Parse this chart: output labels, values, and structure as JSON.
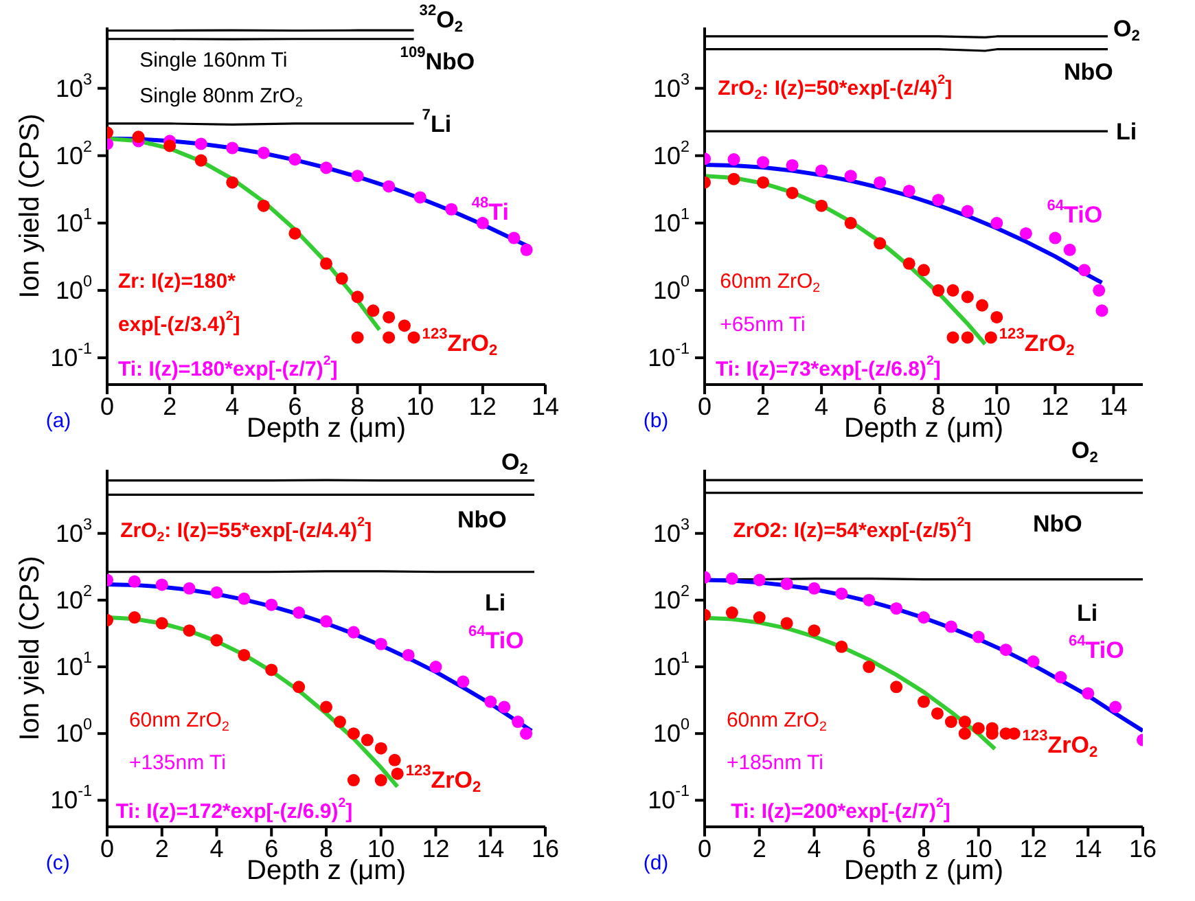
{
  "chart_data": [
    {
      "type": "scatter",
      "xlabel": "Depth z (μm)",
      "ylabel": "Ion yield (CPS)",
      "xlim": [
        0,
        14
      ],
      "xticks": [
        0,
        2,
        4,
        6,
        8,
        10,
        12,
        14
      ],
      "ylim": [
        0.04,
        8000
      ],
      "log": "y",
      "legend": false,
      "grid": false,
      "yticks": [
        {
          "value": 0.1,
          "label": "10$^{-1}$"
        },
        {
          "value": 1,
          "label": "10$^{0}$"
        },
        {
          "value": 10,
          "label": "10$^{1}$"
        },
        {
          "value": 100,
          "label": "10$^{2}$"
        },
        {
          "value": 1000,
          "label": "10$^{3}$"
        }
      ],
      "annotations": [
        "Single 160nm Ti",
        "Single 80nm ZrO$_{2}$",
        "Zr: I(z)=180*",
        "exp[-(z/3.4)$^{2}$]",
        "Ti: I(z)=180*exp[-(z/7)$^{2}$]",
        "(a)"
      ],
      "series": [
        {
          "type": "line",
          "name": "$^{32}$O$_{2}$",
          "color": "#000000",
          "x": [
            0,
            2,
            4,
            6,
            8,
            9.8
          ],
          "values": [
            7200,
            7200,
            7250,
            7200,
            7250,
            7250
          ]
        },
        {
          "type": "line",
          "name": "$^{109}$NbO",
          "color": "#000000",
          "x": [
            0,
            2,
            4,
            6,
            8,
            9.8
          ],
          "values": [
            5400,
            5400,
            5350,
            5400,
            5400,
            5400
          ]
        },
        {
          "type": "line",
          "name": "$^{7}$Li",
          "color": "#000000",
          "x": [
            0,
            2,
            4,
            6,
            8,
            9.8
          ],
          "values": [
            300,
            300,
            290,
            300,
            300,
            300
          ]
        },
        {
          "name": "$^{48}$Ti",
          "color": "#ff00ff",
          "marker": "circle",
          "x": [
            0,
            1,
            2,
            3,
            4,
            5,
            6,
            7,
            8,
            9,
            10,
            11,
            12,
            13,
            13.4
          ],
          "values": [
            150,
            165,
            165,
            150,
            130,
            110,
            88,
            66,
            50,
            35,
            24,
            16,
            10,
            6,
            4
          ]
        },
        {
          "name": "$^{123}$ZrO$_{2}$",
          "color": "#ff0000",
          "marker": "circle",
          "x": [
            0,
            1,
            2,
            3,
            4,
            5,
            6,
            7,
            7.5,
            8,
            8.5,
            9,
            9.5,
            8,
            9,
            9.8
          ],
          "values": [
            220,
            190,
            140,
            85,
            40,
            18,
            7,
            2.5,
            1.5,
            0.8,
            0.5,
            0.4,
            0.3,
            0.2,
            0.2,
            0.2
          ]
        },
        {
          "type": "line",
          "color": "#0000ff",
          "x": [
            0,
            1,
            2,
            3,
            4,
            5,
            6,
            7,
            8,
            9,
            10,
            11,
            12,
            13,
            13.5
          ],
          "values": [
            180,
            176.5,
            165.6,
            149.9,
            130.2,
            108.3,
            86.4,
            66.2,
            48.7,
            34.4,
            23.3,
            15.2,
            9.5,
            5.7,
            4.4
          ]
        },
        {
          "type": "line",
          "color": "#33cc33",
          "x": [
            0,
            1,
            2,
            3,
            4,
            5,
            6,
            7,
            8,
            8.7
          ],
          "values": [
            180,
            165.3,
            127.9,
            82.6,
            45.1,
            20.8,
            8,
            2.6,
            0.71,
            0.26
          ]
        }
      ]
    },
    {
      "type": "scatter",
      "xlabel": "Depth z (μm)",
      "xlim": [
        0,
        15
      ],
      "xticks": [
        0,
        2,
        4,
        6,
        8,
        10,
        12,
        14
      ],
      "ylim": [
        0.04,
        8000
      ],
      "log": "y",
      "legend": false,
      "grid": false,
      "yticks": [
        {
          "value": 0.1,
          "label": "10$^{-1}$"
        },
        {
          "value": 1,
          "label": "10$^{0}$"
        },
        {
          "value": 10,
          "label": "10$^{1}$"
        },
        {
          "value": 100,
          "label": "10$^{2}$"
        },
        {
          "value": 1000,
          "label": "10$^{3}$"
        }
      ],
      "annotations": [
        "ZrO$_{2}$: I(z)=50*exp[-(z/4)$^{2}$]",
        "60nm ZrO$_{2}$",
        "+65nm Ti",
        "Ti: I(z)=73*exp[-(z/6.8)$^{2}$]",
        "(b)"
      ],
      "series": [
        {
          "type": "line",
          "name": "O$_{2}$",
          "color": "#000000",
          "x": [
            0,
            2,
            4,
            6,
            8,
            9.6,
            10,
            12,
            13.8
          ],
          "values": [
            5900,
            5900,
            5900,
            5900,
            5900,
            5700,
            5900,
            5900,
            5900
          ]
        },
        {
          "type": "line",
          "name": "NbO",
          "color": "#000000",
          "x": [
            0,
            2,
            4,
            6,
            8,
            9.6,
            10,
            12,
            13.8
          ],
          "values": [
            3800,
            3800,
            3800,
            3800,
            3800,
            3600,
            3800,
            3800,
            3800
          ]
        },
        {
          "type": "line",
          "name": "Li",
          "color": "#000000",
          "x": [
            0,
            2,
            4,
            6,
            8,
            10,
            12,
            13.8
          ],
          "values": [
            230,
            230,
            230,
            230,
            230,
            230,
            230,
            230
          ]
        },
        {
          "name": "$^{64}$TiO",
          "color": "#ff00ff",
          "marker": "circle",
          "x": [
            0,
            1,
            2,
            3,
            4,
            5,
            6,
            7,
            8,
            9,
            10,
            11,
            12,
            12.5,
            13,
            13.5,
            13.6
          ],
          "values": [
            90,
            88,
            80,
            72,
            60,
            50,
            40,
            30,
            22,
            15,
            10,
            7,
            6,
            4,
            2,
            1,
            0.5
          ]
        },
        {
          "name": "$^{123}$ZrO$_{2}$",
          "color": "#ff0000",
          "marker": "circle",
          "x": [
            0,
            1,
            2,
            3,
            4,
            5,
            6,
            7,
            7.5,
            8,
            8.5,
            9,
            9.5,
            10,
            8.5,
            9,
            9.8
          ],
          "values": [
            40,
            45,
            40,
            28,
            18,
            10,
            5,
            2.5,
            2,
            1,
            1,
            0.8,
            0.6,
            0.4,
            0.2,
            0.2,
            0.2
          ]
        },
        {
          "type": "line",
          "color": "#0000ff",
          "x": [
            0,
            1,
            2,
            3,
            4,
            5,
            6,
            7,
            8,
            9,
            10,
            11,
            12,
            13,
            13.6
          ],
          "values": [
            73,
            71.4,
            66.9,
            60,
            51.5,
            42.4,
            33.5,
            25.3,
            18.3,
            12.7,
            8.4,
            5.3,
            3.2,
            1.8,
            1.3
          ]
        },
        {
          "type": "line",
          "color": "#33cc33",
          "x": [
            0,
            1,
            2,
            3,
            4,
            5,
            6,
            7,
            8,
            9,
            9.6
          ],
          "values": [
            50,
            46.9,
            38.9,
            28.5,
            18.4,
            10.5,
            5.3,
            2.3,
            0.92,
            0.32,
            0.16
          ]
        }
      ]
    },
    {
      "type": "scatter",
      "xlabel": "Depth z (μm)",
      "ylabel": "Ion yield (CPS)",
      "xlim": [
        0,
        16
      ],
      "xticks": [
        0,
        2,
        4,
        6,
        8,
        10,
        12,
        14,
        16
      ],
      "ylim": [
        0.04,
        9000
      ],
      "log": "y",
      "legend": false,
      "grid": false,
      "yticks": [
        {
          "value": 0.1,
          "label": "10$^{-1}$"
        },
        {
          "value": 1,
          "label": "10$^{0}$"
        },
        {
          "value": 10,
          "label": "10$^{1}$"
        },
        {
          "value": 100,
          "label": "10$^{2}$"
        },
        {
          "value": 1000,
          "label": "10$^{3}$"
        }
      ],
      "annotations": [
        "ZrO$_{2}$: I(z)=55*exp[-(z/4.4)$^{2}$]",
        "60nm ZrO$_{2}$",
        "+135nm Ti",
        "Ti: I(z)=172*exp[-(z/6.9)$^{2}$]",
        "(c)"
      ],
      "series": [
        {
          "type": "line",
          "name": "O$_{2}$",
          "color": "#000000",
          "x": [
            0,
            2,
            4,
            6,
            8,
            10,
            12,
            14,
            15.6
          ],
          "values": [
            6200,
            6200,
            6200,
            6200,
            6300,
            6200,
            6200,
            6200,
            6200
          ]
        },
        {
          "type": "line",
          "name": "NbO",
          "color": "#000000",
          "x": [
            0,
            2,
            4,
            6,
            8,
            10,
            12,
            14,
            15.6
          ],
          "values": [
            3800,
            3800,
            3800,
            3800,
            3800,
            3800,
            3800,
            3800,
            3800
          ]
        },
        {
          "type": "line",
          "name": "Li",
          "color": "#000000",
          "x": [
            0,
            2,
            4,
            6,
            8,
            10,
            12,
            14,
            15.6
          ],
          "values": [
            265,
            265,
            265,
            265,
            270,
            270,
            265,
            265,
            265
          ]
        },
        {
          "name": "$^{64}$TiO",
          "color": "#ff00ff",
          "marker": "circle",
          "x": [
            0,
            1,
            2,
            3,
            4,
            5,
            6,
            7,
            8,
            9,
            10,
            11,
            12,
            13,
            14,
            14.5,
            15,
            15.3
          ],
          "values": [
            200,
            190,
            170,
            150,
            130,
            105,
            85,
            65,
            48,
            33,
            22,
            15,
            10,
            6,
            3,
            2.5,
            1.5,
            1
          ]
        },
        {
          "name": "$^{123}$ZrO$_{2}$",
          "color": "#ff0000",
          "marker": "circle",
          "x": [
            0,
            1,
            2,
            3,
            4,
            5,
            6,
            7,
            8,
            8.5,
            9,
            9.5,
            10,
            10.5,
            9,
            10,
            10.6
          ],
          "values": [
            50,
            55,
            45,
            35,
            25,
            15,
            9,
            5,
            2.5,
            1.5,
            1,
            0.8,
            0.6,
            0.4,
            0.2,
            0.2,
            0.25
          ]
        },
        {
          "type": "line",
          "color": "#0000ff",
          "x": [
            0,
            1,
            2,
            3,
            4,
            5,
            6,
            7,
            8,
            9,
            10,
            11,
            12,
            13,
            14,
            15,
            15.5
          ],
          "values": [
            172,
            168.4,
            158,
            142.4,
            123,
            101.9,
            80.8,
            61.4,
            44.8,
            31.3,
            21,
            13.5,
            8.4,
            4.9,
            2.8,
            1.5,
            1.1
          ]
        },
        {
          "type": "line",
          "color": "#33cc33",
          "x": [
            0,
            1,
            2,
            3,
            4,
            5,
            6,
            7,
            8,
            9,
            10,
            10.6
          ],
          "values": [
            55,
            52.2,
            44.8,
            34.6,
            24.1,
            15.2,
            8.6,
            4.4,
            2,
            0.84,
            0.31,
            0.16
          ]
        }
      ]
    },
    {
      "type": "scatter",
      "xlabel": "Depth z (μm)",
      "xlim": [
        0,
        16
      ],
      "xticks": [
        0,
        2,
        4,
        6,
        8,
        10,
        12,
        14,
        16
      ],
      "ylim": [
        0.04,
        9000
      ],
      "log": "y",
      "legend": false,
      "grid": false,
      "yticks": [
        {
          "value": 0.1,
          "label": "10$^{-1}$"
        },
        {
          "value": 1,
          "label": "10$^{0}$"
        },
        {
          "value": 10,
          "label": "10$^{1}$"
        },
        {
          "value": 100,
          "label": "10$^{2}$"
        },
        {
          "value": 1000,
          "label": "10$^{3}$"
        }
      ],
      "annotations": [
        "ZrO2: I(z)=54*exp[-(z/5)$^{2}$]",
        "60nm ZrO$_{2}$",
        "+185nm Ti",
        "Ti: I(z)=200*exp[-(z/7)$^{2}$]",
        "(d)"
      ],
      "series": [
        {
          "type": "line",
          "name": "O$_{2}$",
          "color": "#000000",
          "x": [
            0,
            2,
            4,
            6,
            8,
            10,
            12,
            14,
            16
          ],
          "values": [
            6300,
            6300,
            6300,
            6300,
            6300,
            6300,
            6300,
            6300,
            6300
          ]
        },
        {
          "type": "line",
          "name": "NbO",
          "color": "#000000",
          "x": [
            0,
            2,
            4,
            6,
            8,
            10,
            12,
            14,
            16
          ],
          "values": [
            4060,
            4060,
            4060,
            4060,
            4060,
            4060,
            4060,
            4060,
            4060
          ]
        },
        {
          "type": "line",
          "name": "Li",
          "color": "#000000",
          "x": [
            0,
            2,
            4,
            6,
            8,
            10,
            12,
            14,
            16
          ],
          "values": [
            205,
            205,
            210,
            210,
            205,
            205,
            205,
            205,
            205
          ]
        },
        {
          "name": "$^{64}$TiO",
          "color": "#ff00ff",
          "marker": "circle",
          "x": [
            0,
            1,
            2,
            3,
            4,
            5,
            6,
            7,
            8,
            9,
            10,
            11,
            12,
            13,
            14,
            15,
            16
          ],
          "values": [
            220,
            210,
            200,
            175,
            150,
            125,
            100,
            75,
            55,
            40,
            28,
            18,
            12,
            7,
            4,
            2.5,
            0.8
          ]
        },
        {
          "name": "$^{123}$ZrO$_{2}$",
          "color": "#ff0000",
          "marker": "circle",
          "x": [
            0,
            1,
            2,
            3,
            4,
            5,
            6,
            7,
            8,
            8.5,
            9,
            9.5,
            10,
            10.5,
            11,
            9.5,
            10.5,
            11.3
          ],
          "values": [
            60,
            65,
            55,
            45,
            35,
            20,
            10,
            5,
            3,
            2,
            1.5,
            1.5,
            1.2,
            1.2,
            1,
            1,
            1,
            1
          ]
        },
        {
          "type": "line",
          "color": "#0000ff",
          "x": [
            0,
            1,
            2,
            3,
            4,
            5,
            6,
            7,
            8,
            9,
            10,
            11,
            12,
            13,
            14,
            15,
            16
          ],
          "values": [
            200,
            196,
            184,
            166,
            144.7,
            120.3,
            96,
            73.6,
            54.2,
            38.3,
            26,
            17,
            10.6,
            6.3,
            3.7,
            2,
            1.1
          ]
        },
        {
          "type": "line",
          "color": "#33cc33",
          "x": [
            0,
            1,
            2,
            3,
            4,
            5,
            6,
            7,
            8,
            9,
            10,
            10.6
          ],
          "values": [
            54,
            51.9,
            46,
            37.8,
            28.5,
            19.9,
            12.8,
            7.6,
            4.2,
            2.1,
            0.99,
            0.59
          ]
        }
      ]
    }
  ]
}
